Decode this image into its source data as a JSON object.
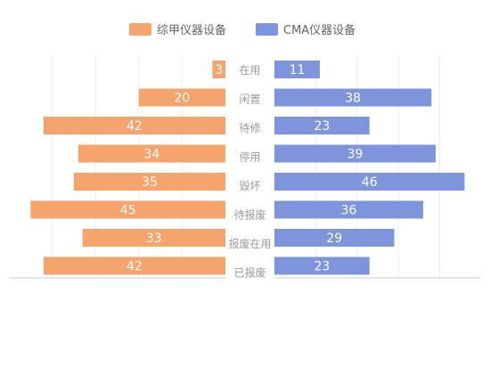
{
  "chart_data": {
    "type": "bar",
    "orientation": "horizontal-butterfly",
    "categories": [
      "在用",
      "闲置",
      "待修",
      "停用",
      "毁坏",
      "待报废",
      "报废在用",
      "已报废"
    ],
    "series": [
      {
        "name": "综甲仪器设备",
        "color": "#F6A46D",
        "values": [
          3,
          20,
          42,
          34,
          35,
          45,
          33,
          42
        ]
      },
      {
        "name": "CMA仪器设备",
        "color": "#7E95DC",
        "values": [
          11,
          38,
          23,
          39,
          46,
          36,
          29,
          23
        ]
      }
    ],
    "xlim": [
      0,
      50
    ],
    "grid": true,
    "legend_position": "top-center"
  }
}
